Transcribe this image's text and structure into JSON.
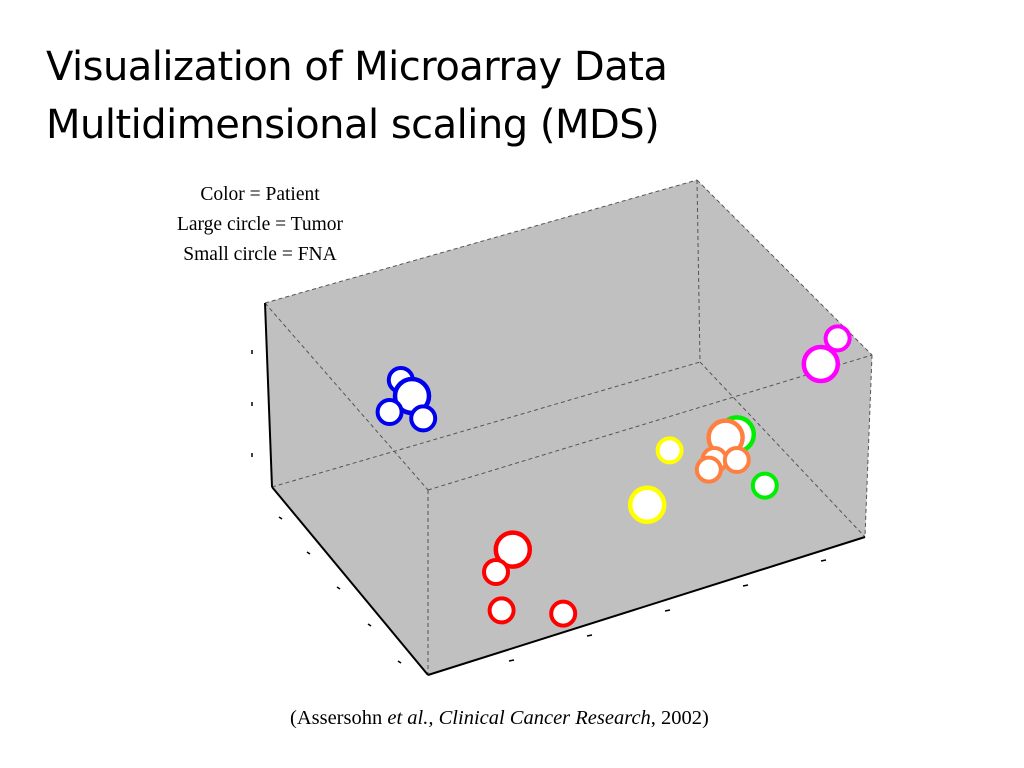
{
  "slide": {
    "title_line1": "Visualization of Microarray Data",
    "title_line2": "Multidimensional scaling (MDS)"
  },
  "legend_note": {
    "line1": "Color = Patient",
    "line2": "Large circle = Tumor",
    "line3": "Small circle = FNA"
  },
  "citation": {
    "open": "(Assersohn ",
    "etal": "et al.,",
    "space": " ",
    "journal": "Clinical Cancer Research",
    "close": ", 2002)"
  },
  "chart_data": {
    "type": "scatter",
    "projection": "3d",
    "title": "",
    "xlabel": "",
    "ylabel": "",
    "zlabel": "",
    "tick_labels_shown": false,
    "legend": [
      {
        "label": "Color = Patient"
      },
      {
        "label": "Large circle = Tumor"
      },
      {
        "label": "Small circle = FNA"
      }
    ],
    "box_color": "#c0c0c0",
    "series": [
      {
        "name": "Patient (blue)",
        "color": "#0000ee",
        "points": [
          {
            "sample": "FNA",
            "x": 0.18,
            "y": 0.25
          },
          {
            "sample": "Tumor",
            "x": 0.2,
            "y": 0.3
          },
          {
            "sample": "FNA",
            "x": 0.16,
            "y": 0.35
          },
          {
            "sample": "FNA",
            "x": 0.22,
            "y": 0.37
          }
        ]
      },
      {
        "name": "Patient (magenta)",
        "color": "#ff00ff",
        "points": [
          {
            "sample": "FNA",
            "x": 0.96,
            "y": 0.12
          },
          {
            "sample": "Tumor",
            "x": 0.93,
            "y": 0.2
          }
        ]
      },
      {
        "name": "Patient (green)",
        "color": "#00ee00",
        "points": [
          {
            "sample": "Tumor",
            "x": 0.78,
            "y": 0.42
          },
          {
            "sample": "FNA",
            "x": 0.83,
            "y": 0.58
          }
        ]
      },
      {
        "name": "Patient (orange)",
        "color": "#ff7f40",
        "points": [
          {
            "sample": "Tumor",
            "x": 0.76,
            "y": 0.43
          },
          {
            "sample": "FNA",
            "x": 0.74,
            "y": 0.5
          },
          {
            "sample": "FNA",
            "x": 0.78,
            "y": 0.5
          },
          {
            "sample": "FNA",
            "x": 0.73,
            "y": 0.53
          }
        ]
      },
      {
        "name": "Patient (yellow)",
        "color": "#ffff00",
        "points": [
          {
            "sample": "FNA",
            "x": 0.66,
            "y": 0.47
          },
          {
            "sample": "Tumor",
            "x": 0.62,
            "y": 0.64
          }
        ]
      },
      {
        "name": "Patient (red)",
        "color": "#ff0000",
        "points": [
          {
            "sample": "Tumor",
            "x": 0.38,
            "y": 0.78
          },
          {
            "sample": "FNA",
            "x": 0.35,
            "y": 0.85
          },
          {
            "sample": "FNA",
            "x": 0.36,
            "y": 0.97
          },
          {
            "sample": "FNA",
            "x": 0.47,
            "y": 0.98
          }
        ]
      }
    ]
  }
}
